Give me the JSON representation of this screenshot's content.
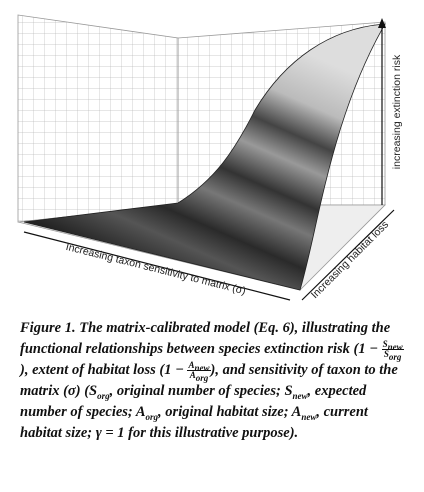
{
  "figure": {
    "z_axis_label": "increasing extinction risk",
    "y_axis_label": "Increasing habitat loss",
    "x_axis_label": "Increasing taxon sensitivity to matrix (σ)"
  },
  "caption": {
    "label": "Figure 1.",
    "text_1": "The matrix-calibrated model (Eq. 6), illustrating the functional relationships between species extinction risk (1 −",
    "frac_1": {
      "numerator": "S",
      "numerator_sub": "new",
      "denominator": "S",
      "denominator_sub": "org"
    },
    "text_2": "), extent of habitat loss (1 −",
    "frac_2": {
      "numerator": "A",
      "numerator_sub": "new",
      "denominator": "A",
      "denominator_sub": "org"
    },
    "text_3": "), and sensitivity of taxon to the matrix (σ) (",
    "defs": [
      {
        "symbol": "S",
        "sub": "org",
        "text": ", original number of species;"
      },
      {
        "symbol": "S",
        "sub": "new",
        "text": ", expected number of species;"
      },
      {
        "symbol": "A",
        "sub": "org",
        "text": ", original habitat size;"
      },
      {
        "symbol": "A",
        "sub": "new",
        "text": ", current habitat size;"
      }
    ],
    "text_4": "γ = 1 for this illustrative purpose)."
  }
}
